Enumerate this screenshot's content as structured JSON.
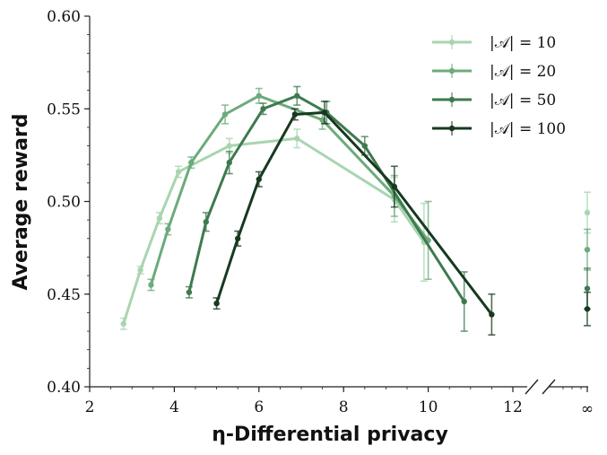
{
  "chart_data": {
    "type": "line",
    "xlabel": "η-Differential privacy",
    "ylabel": "Average reward",
    "xlim": [
      2,
      12
    ],
    "ylim": [
      0.4,
      0.6
    ],
    "x_ticks": [
      2,
      4,
      6,
      8,
      10,
      12
    ],
    "x_tick_labels": [
      "2",
      "4",
      "6",
      "8",
      "10",
      "12"
    ],
    "y_ticks": [
      0.4,
      0.45,
      0.5,
      0.55,
      0.6
    ],
    "y_tick_labels": [
      "0.40",
      "0.45",
      "0.50",
      "0.55",
      "0.60"
    ],
    "infinity_label": "∞",
    "grid": false,
    "legend_position": "top-right",
    "series": [
      {
        "name": "|𝒜| = 10",
        "color": "#a8d5b0",
        "x": [
          2.8,
          3.2,
          3.65,
          4.1,
          5.3,
          6.9,
          9.2,
          9.9
        ],
        "y": [
          0.434,
          0.463,
          0.491,
          0.516,
          0.53,
          0.534,
          0.501,
          0.478
        ],
        "err": [
          0.003,
          0.002,
          0.003,
          0.003,
          0.004,
          0.005,
          0.012,
          0.021
        ],
        "inf_y": 0.494,
        "inf_err": 0.011
      },
      {
        "name": "|𝒜| = 20",
        "color": "#6cab7b",
        "x": [
          3.45,
          3.85,
          4.4,
          5.2,
          6.0,
          7.5,
          9.2,
          10.0
        ],
        "y": [
          0.455,
          0.485,
          0.521,
          0.547,
          0.557,
          0.544,
          0.503,
          0.479
        ],
        "err": [
          0.003,
          0.003,
          0.003,
          0.005,
          0.004,
          0.005,
          0.011,
          0.021
        ],
        "inf_y": 0.474,
        "inf_err": 0.011
      },
      {
        "name": "|𝒜| = 50",
        "color": "#3e7a4f",
        "x": [
          4.35,
          4.75,
          5.3,
          6.1,
          6.9,
          7.6,
          8.5,
          10.85
        ],
        "y": [
          0.451,
          0.489,
          0.521,
          0.55,
          0.557,
          0.548,
          0.53,
          0.446
        ],
        "err": [
          0.003,
          0.005,
          0.006,
          0.003,
          0.005,
          0.006,
          0.005,
          0.016
        ],
        "inf_y": 0.453,
        "inf_err": 0.011
      },
      {
        "name": "|𝒜| = 100",
        "color": "#17391f",
        "x": [
          5.0,
          5.5,
          6.0,
          6.85,
          7.55,
          9.2,
          11.5
        ],
        "y": [
          0.445,
          0.48,
          0.512,
          0.547,
          0.548,
          0.508,
          0.439
        ],
        "err": [
          0.003,
          0.004,
          0.004,
          0.003,
          0.006,
          0.011,
          0.011
        ],
        "inf_y": 0.442,
        "inf_err": 0.009
      }
    ]
  }
}
